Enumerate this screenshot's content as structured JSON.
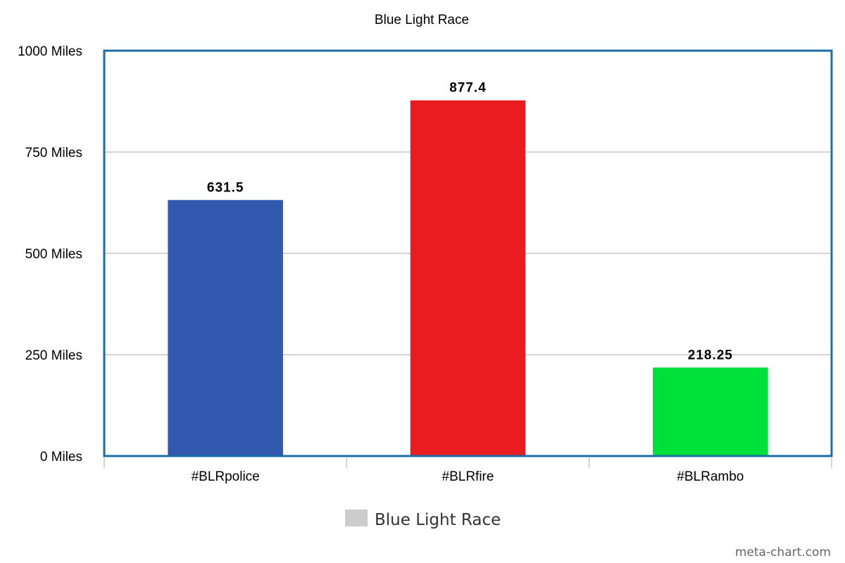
{
  "chart_data": {
    "type": "bar",
    "title": "Blue Light Race",
    "categories": [
      "#BLRpolice",
      "#BLRfire",
      "#BLRambo"
    ],
    "series": [
      {
        "name": "Blue Light Race",
        "values": [
          631.5,
          877.4,
          218.25
        ],
        "value_labels": [
          "631.5",
          "877.4",
          "218.25"
        ],
        "bar_colors": [
          "#3358b0",
          "#ea1c1f",
          "#00e03a"
        ]
      }
    ],
    "ylim": [
      0,
      1000
    ],
    "yticks": [
      0,
      250,
      500,
      750,
      1000
    ],
    "ytick_labels": [
      "0 Miles",
      "250 Miles",
      "500 Miles",
      "750 Miles",
      "1000 Miles"
    ],
    "xlabel": "",
    "ylabel": "",
    "grid": true,
    "legend": {
      "position": "bottom-center",
      "label": "Blue Light Race",
      "swatch_color": "#cccccc"
    },
    "colors": {
      "frame": "#1b6ea6",
      "grid": "#c3c7cc",
      "axis_tick": "#c3c7cc"
    }
  },
  "watermark": "meta-chart.com"
}
